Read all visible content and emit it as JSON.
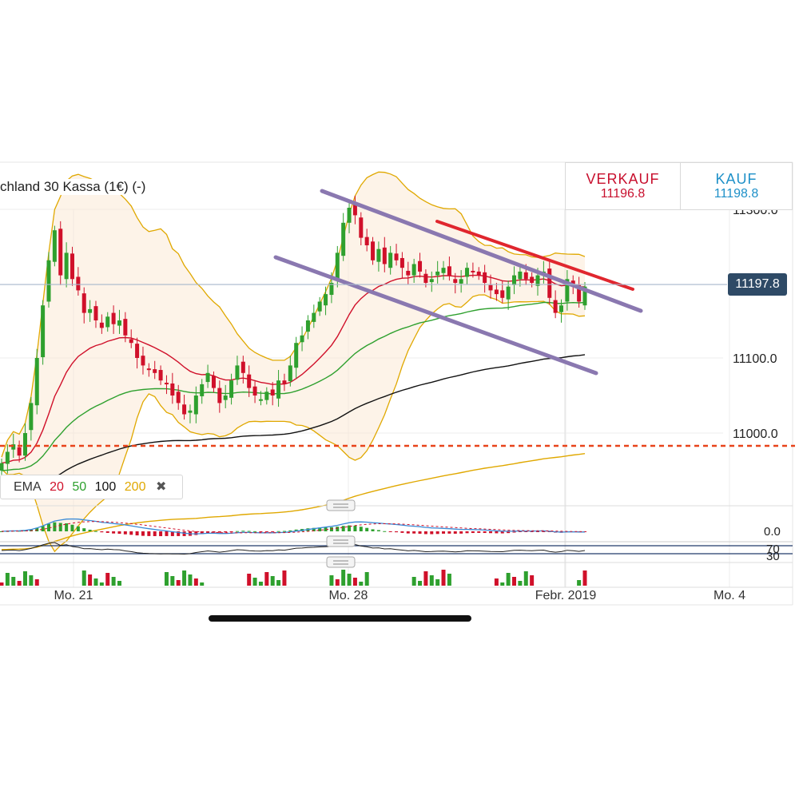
{
  "instrument": {
    "title": "chland 30 Kassa (1€) (-)"
  },
  "quotes": {
    "sell_label": "VERKAUF",
    "sell_value": "11196.8",
    "buy_label": "KAUF",
    "buy_value": "11198.8"
  },
  "current_price": "11197.8",
  "legend": {
    "label": "EMA",
    "periods": [
      {
        "text": "20",
        "color": "#d0102a"
      },
      {
        "text": "50",
        "color": "#2ea02e"
      },
      {
        "text": "100",
        "color": "#111111"
      },
      {
        "text": "200",
        "color": "#e0a800"
      }
    ],
    "close_symbol": "✖"
  },
  "colors": {
    "up": "#2ea02e",
    "down": "#d0102a",
    "ema20": "#d0102a",
    "ema50": "#2ea02e",
    "ema100": "#111111",
    "ema200": "#e0a800",
    "bollinger": "#e0a800",
    "channel": "#8a78b0",
    "resistance": "#e0262e",
    "support_line": "#e8431a",
    "price_line": "#a7b7cc",
    "macd_line": "#3a8ad6",
    "macd_signal": "#d0102a"
  },
  "chart_data": {
    "type": "candlestick",
    "title": "chland 30 Kassa (1€) (-)",
    "x_labels": [
      "Mo. 21",
      "Mo. 28",
      "Febr. 2019",
      "Mo. 4"
    ],
    "y_ticks": [
      "11000.0",
      "11100.0",
      "11300.0"
    ],
    "ylim": [
      10900,
      11330
    ],
    "last_price": 11197.8,
    "support_level": 10983,
    "macd_ticks": [
      "0.0"
    ],
    "rsi_ticks": [
      "70",
      "30"
    ],
    "closes": [
      10960,
      10975,
      10985,
      10970,
      11000,
      11040,
      11100,
      11170,
      11230,
      11270,
      11210,
      11240,
      11205,
      11190,
      11160,
      11165,
      11150,
      11140,
      11155,
      11145,
      11150,
      11130,
      11120,
      11100,
      11090,
      11085,
      11080,
      11070,
      11065,
      11050,
      11040,
      11025,
      11030,
      11050,
      11065,
      11080,
      11060,
      11040,
      11050,
      11070,
      11090,
      11080,
      11060,
      11050,
      11045,
      11055,
      11050,
      11070,
      11065,
      11090,
      11120,
      11130,
      11150,
      11160,
      11175,
      11185,
      11200,
      11240,
      11280,
      11300,
      11290,
      11260,
      11250,
      11230,
      11245,
      11225,
      11240,
      11230,
      11220,
      11210,
      11225,
      11215,
      11200,
      11205,
      11215,
      11220,
      11210,
      11200,
      11205,
      11220,
      11215,
      11210,
      11200,
      11190,
      11185,
      11180,
      11195,
      11210,
      11215,
      11205,
      11200,
      11210,
      11215,
      11180,
      11160,
      11170,
      11205,
      11195,
      11175,
      11195
    ]
  }
}
